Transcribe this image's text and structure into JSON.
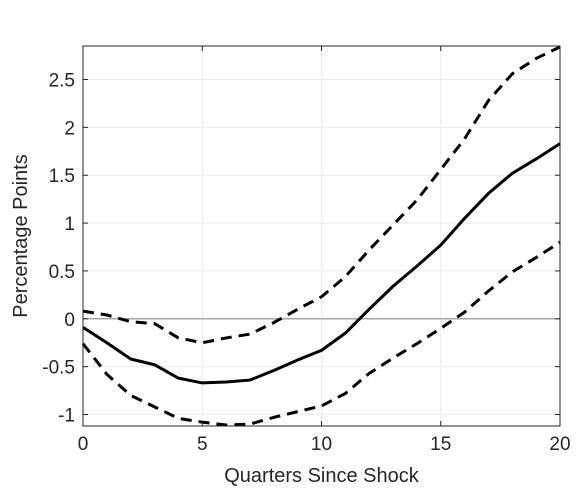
{
  "chart_data": {
    "type": "line",
    "title": "",
    "xlabel": "Quarters Since Shock",
    "ylabel": "Percentage Points",
    "xlim": [
      0,
      20
    ],
    "ylim": [
      -1.12,
      2.85
    ],
    "x_ticks": [
      0,
      5,
      10,
      15,
      20
    ],
    "x_tick_labels": [
      "0",
      "5",
      "10",
      "15",
      "20"
    ],
    "y_ticks": [
      -1,
      -0.5,
      0,
      0.5,
      1,
      1.5,
      2,
      2.5
    ],
    "y_tick_labels": [
      "-1",
      "-0.5",
      "0",
      "0.5",
      "1",
      "1.5",
      "2",
      "2.5"
    ],
    "grid": true,
    "zero_line": true,
    "x": [
      0,
      1,
      2,
      3,
      4,
      5,
      6,
      7,
      8,
      9,
      10,
      11,
      12,
      13,
      14,
      15,
      16,
      17,
      18,
      19,
      20
    ],
    "series": [
      {
        "style": "solid",
        "color": "#000000",
        "values": [
          -0.09,
          -0.25,
          -0.42,
          -0.48,
          -0.62,
          -0.67,
          -0.66,
          -0.64,
          -0.54,
          -0.43,
          -0.33,
          -0.15,
          0.1,
          0.34,
          0.55,
          0.77,
          1.05,
          1.31,
          1.52,
          1.67,
          1.83
        ]
      },
      {
        "style": "dashed",
        "color": "#000000",
        "values": [
          0.08,
          0.04,
          -0.03,
          -0.05,
          -0.2,
          -0.25,
          -0.2,
          -0.16,
          -0.04,
          0.1,
          0.23,
          0.44,
          0.72,
          0.98,
          1.24,
          1.56,
          1.88,
          2.28,
          2.56,
          2.72,
          2.84
        ]
      },
      {
        "style": "dashed",
        "color": "#000000",
        "values": [
          -0.26,
          -0.58,
          -0.8,
          -0.92,
          -1.04,
          -1.08,
          -1.11,
          -1.1,
          -1.03,
          -0.97,
          -0.91,
          -0.78,
          -0.57,
          -0.41,
          -0.26,
          -0.1,
          0.07,
          0.29,
          0.49,
          0.64,
          0.8
        ]
      }
    ]
  }
}
